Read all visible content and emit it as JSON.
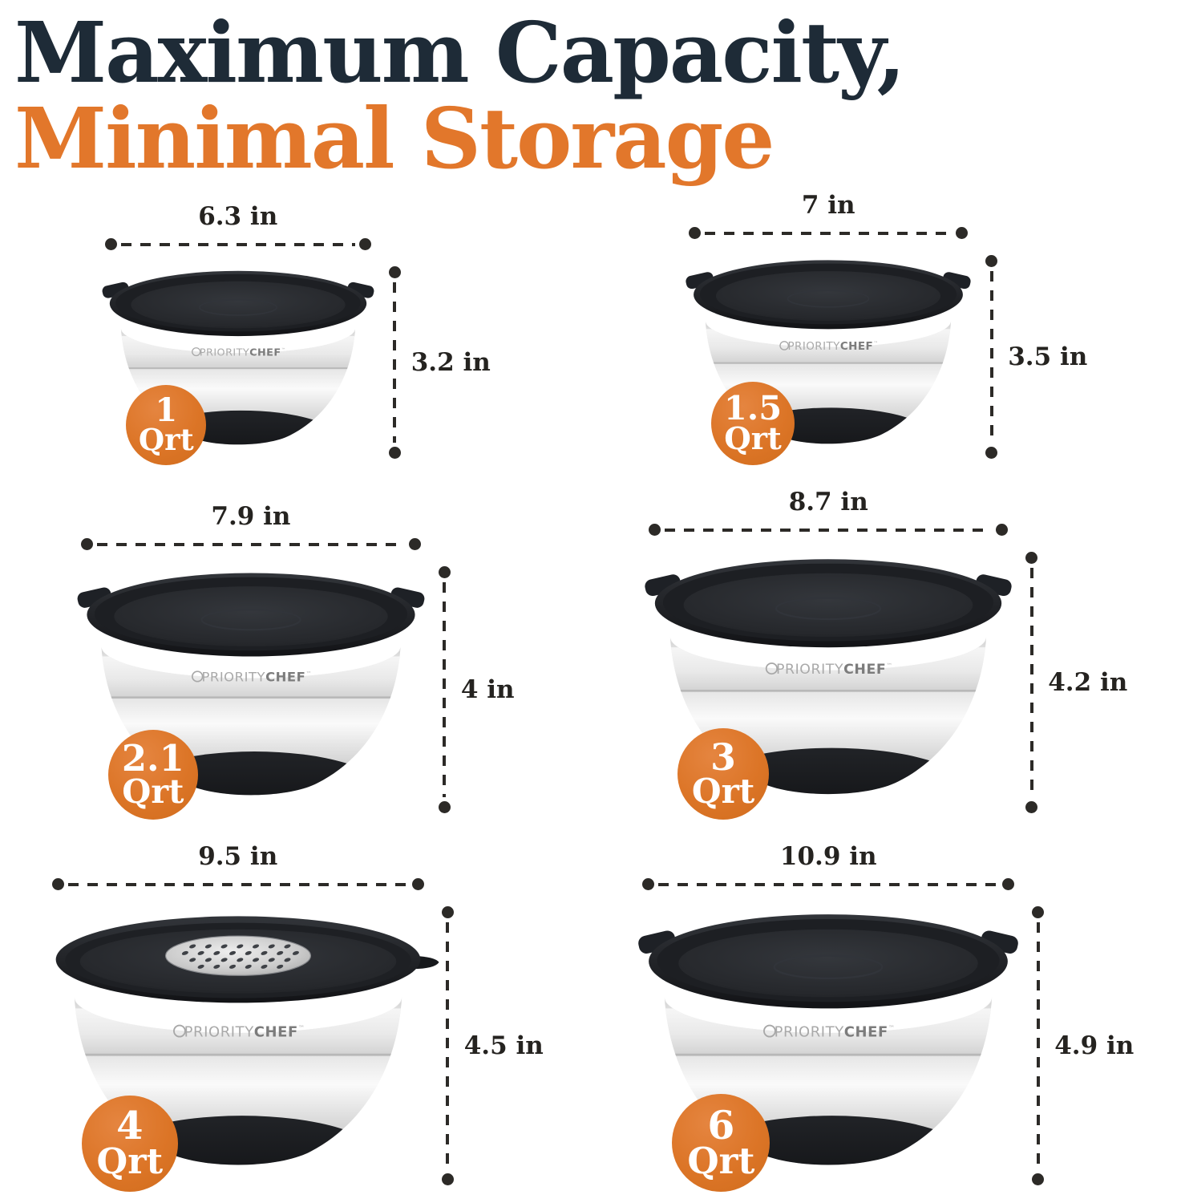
{
  "title": {
    "line1": "Maximum Capacity,",
    "line2": "Minimal Storage"
  },
  "brand": {
    "logo_primary": "PRIORITY",
    "logo_secondary": "CHEF",
    "logo_trademark": "™"
  },
  "colors": {
    "heading_dark": "#1e2b37",
    "accent_orange": "#e2772b",
    "badge_orange": "#dc7527",
    "dimension_ink": "#2c2a27",
    "lid_black": "#1d1f23",
    "steel_silver": "#e6e6e6"
  },
  "bowls": [
    {
      "id": "1-qrt",
      "capacity_value": "1",
      "capacity_unit": "Qrt",
      "width_label": "6.3 in",
      "height_label": "3.2 in",
      "width_in": 6.3,
      "height_in": 3.2,
      "lid_insert": "none"
    },
    {
      "id": "1-5-qrt",
      "capacity_value": "1.5",
      "capacity_unit": "Qrt",
      "width_label": "7 in",
      "height_label": "3.5 in",
      "width_in": 7,
      "height_in": 3.5,
      "lid_insert": "none"
    },
    {
      "id": "2-1-qrt",
      "capacity_value": "2.1",
      "capacity_unit": "Qrt",
      "width_label": "7.9 in",
      "height_label": "4 in",
      "width_in": 7.9,
      "height_in": 4,
      "lid_insert": "none"
    },
    {
      "id": "3-qrt",
      "capacity_value": "3",
      "capacity_unit": "Qrt",
      "width_label": "8.7 in",
      "height_label": "4.2 in",
      "width_in": 8.7,
      "height_in": 4.2,
      "lid_insert": "none"
    },
    {
      "id": "4-qrt",
      "capacity_value": "4",
      "capacity_unit": "Qrt",
      "width_label": "9.5 in",
      "height_label": "4.5 in",
      "width_in": 9.5,
      "height_in": 4.5,
      "lid_insert": "grater"
    },
    {
      "id": "6-qrt",
      "capacity_value": "6",
      "capacity_unit": "Qrt",
      "width_label": "10.9 in",
      "height_label": "4.9 in",
      "width_in": 10.9,
      "height_in": 4.9,
      "lid_insert": "none"
    }
  ]
}
